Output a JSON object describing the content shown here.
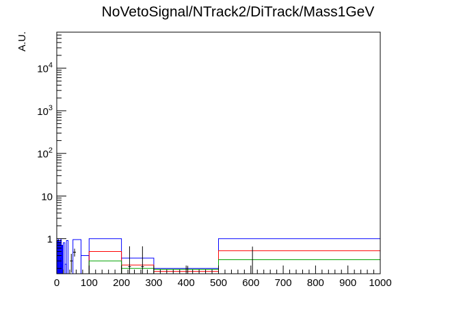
{
  "chart_data": {
    "type": "line",
    "title": "NoVetoSignal/NTrack2/DiTrack/Mass1GeV",
    "xlabel": "",
    "ylabel": "A.U.",
    "xlim": [
      0,
      1000
    ],
    "ylim": [
      0.15,
      70000
    ],
    "yscale": "log",
    "grid": false,
    "x_ticks": [
      0,
      100,
      200,
      300,
      400,
      500,
      600,
      700,
      800,
      900,
      1000
    ],
    "x_tick_labels": [
      "0",
      "100",
      "200",
      "300",
      "400",
      "500",
      "600",
      "700",
      "800",
      "900",
      "1000"
    ],
    "y_ticks": [
      1,
      10,
      100,
      1000,
      10000
    ],
    "y_tick_labels": [
      {
        "base": "1",
        "exp": ""
      },
      {
        "base": "10",
        "exp": ""
      },
      {
        "base": "10",
        "exp": "2"
      },
      {
        "base": "10",
        "exp": "3"
      },
      {
        "base": "10",
        "exp": "4"
      }
    ],
    "series": [
      {
        "color": "#0000ff",
        "style": "hist",
        "bins": [
          [
            0,
            2,
            0.9
          ],
          [
            2,
            4,
            0.3
          ],
          [
            4,
            6,
            0.95
          ],
          [
            6,
            8,
            0.2
          ],
          [
            8,
            10,
            0.85
          ],
          [
            10,
            12,
            0.35
          ],
          [
            12,
            14,
            0.95
          ],
          [
            14,
            16,
            0.25
          ],
          [
            16,
            18,
            0.7
          ],
          [
            18,
            20,
            0.3
          ],
          [
            20,
            25,
            0.8
          ],
          [
            25,
            30,
            0.25
          ],
          [
            30,
            35,
            0.9
          ],
          [
            35,
            40,
            0.15
          ],
          [
            40,
            50,
            0.15
          ],
          [
            50,
            75,
            0.95
          ],
          [
            75,
            100,
            0.4
          ],
          [
            100,
            200,
            1.0
          ],
          [
            200,
            300,
            0.35
          ],
          [
            300,
            500,
            0.2
          ],
          [
            500,
            1000,
            1.0
          ]
        ]
      },
      {
        "color": "#ff0000",
        "style": "hist",
        "bins": [
          [
            100,
            200,
            0.5
          ],
          [
            200,
            300,
            0.24
          ],
          [
            300,
            500,
            0.17
          ],
          [
            500,
            1000,
            0.52
          ]
        ]
      },
      {
        "color": "#00a000",
        "style": "hist",
        "bins": [
          [
            100,
            200,
            0.3
          ],
          [
            200,
            300,
            0.2
          ],
          [
            300,
            500,
            0.19
          ],
          [
            500,
            1000,
            0.32
          ]
        ]
      },
      {
        "color": "#000000",
        "style": "points",
        "points": [
          {
            "x": 45,
            "y": 0.3,
            "err": 0.14
          },
          {
            "x": 55,
            "y": 0.48,
            "err": 0.1
          },
          {
            "x": 225,
            "y": 0.22,
            "err": 0.44
          },
          {
            "x": 265,
            "y": 0.22,
            "err": 0.44
          },
          {
            "x": 405,
            "y": 0.15,
            "err": 0.08
          },
          {
            "x": 605,
            "y": 0.15,
            "err": 0.5
          }
        ]
      }
    ]
  }
}
